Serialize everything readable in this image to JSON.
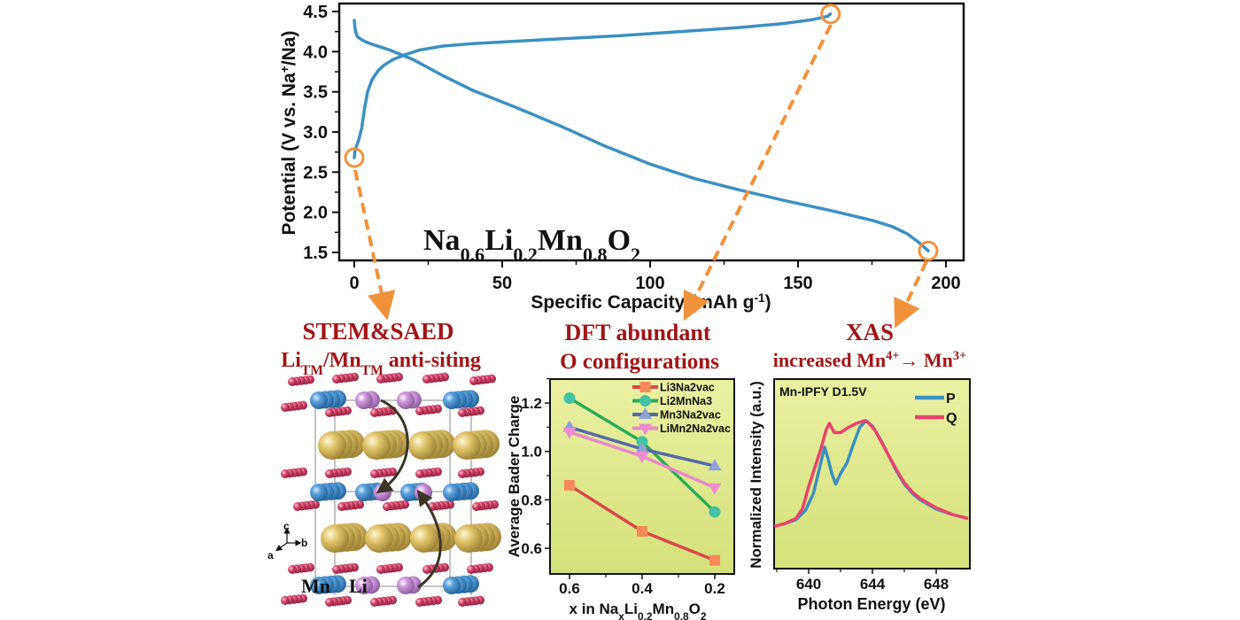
{
  "chart_data": [
    {
      "id": "voltage",
      "type": "line",
      "title": "",
      "annotation": {
        "base": [
          "Na",
          "Li",
          "Mn",
          "O"
        ],
        "subs": [
          "0.6",
          "0.2",
          "0.8",
          "2"
        ]
      },
      "xlabel": "Specific Capacity (mAh g",
      "xlabel_sup": "-1",
      "xlabel_end": ")",
      "ylabel": "Potential (V vs. Na",
      "ylabel_sup": "+",
      "ylabel_end": "/Na)",
      "xlim": [
        -7,
        205
      ],
      "ylim": [
        1.4,
        4.6
      ],
      "xticks": [
        0,
        50,
        100,
        150,
        200
      ],
      "yticks": [
        1.5,
        2.0,
        2.5,
        3.0,
        3.5,
        4.0,
        4.5
      ],
      "line_color": "#3d8fc0",
      "series": [
        {
          "name": "charge",
          "x": [
            0,
            0.3,
            0.8,
            1.5,
            2.5,
            3.5,
            4.5,
            6,
            8,
            10,
            13,
            17,
            22,
            30,
            40,
            55,
            70,
            90,
            110,
            130,
            145,
            155,
            160,
            161
          ],
          "y": [
            2.68,
            2.78,
            2.83,
            2.9,
            3.05,
            3.3,
            3.5,
            3.65,
            3.76,
            3.83,
            3.9,
            3.96,
            4.02,
            4.07,
            4.1,
            4.13,
            4.16,
            4.2,
            4.25,
            4.3,
            4.35,
            4.4,
            4.44,
            4.47
          ]
        },
        {
          "name": "discharge",
          "x": [
            0,
            0.2,
            0.5,
            1,
            2,
            4,
            7,
            12,
            20,
            30,
            40,
            55,
            70,
            85,
            100,
            115,
            130,
            145,
            160,
            175,
            182,
            187,
            191,
            194
          ],
          "y": [
            4.39,
            4.3,
            4.24,
            4.19,
            4.16,
            4.12,
            4.08,
            4.02,
            3.9,
            3.7,
            3.52,
            3.3,
            3.07,
            2.82,
            2.6,
            2.42,
            2.28,
            2.15,
            2.03,
            1.9,
            1.82,
            1.73,
            1.62,
            1.52
          ]
        }
      ],
      "markers": [
        {
          "x": 0,
          "y": 2.68,
          "label": "start"
        },
        {
          "x": 161,
          "y": 4.47,
          "label": "charged"
        },
        {
          "x": 194,
          "y": 1.52,
          "label": "discharged"
        }
      ],
      "marker_color": "#f0923c"
    },
    {
      "id": "dft",
      "type": "line",
      "title_lines": [
        "DFT  abundant",
        "O configurations"
      ],
      "xlabel": "x in Na",
      "xlabel_parts": [
        {
          "t": "x in Na"
        },
        {
          "t": "x",
          "sub": true
        },
        {
          "t": "Li"
        },
        {
          "t": "0.2",
          "sub": true
        },
        {
          "t": "Mn"
        },
        {
          "t": "0.8",
          "sub": true
        },
        {
          "t": "O"
        },
        {
          "t": "2",
          "sub": true
        }
      ],
      "ylabel": "Average Bader Charge",
      "xlim": [
        0.67,
        0.13
      ],
      "ylim": [
        0.5,
        1.3
      ],
      "xticks": [
        0.6,
        0.4,
        0.2
      ],
      "xtick_labels": [
        "0.6",
        "0.4",
        "0.2"
      ],
      "yticks": [
        0.6,
        0.8,
        1.0,
        1.2
      ],
      "ytick_labels": [
        "0.6",
        "0.8",
        "1.0",
        "1.2"
      ],
      "background": "#dfe98a",
      "categories": [
        0.6,
        0.4,
        0.2
      ],
      "legend_position": "top-right",
      "series": [
        {
          "name": "Li3Na2vac",
          "values": [
            0.86,
            0.67,
            0.55
          ],
          "color": "#d94848",
          "marker": "square",
          "marker_color": "#f58a5a"
        },
        {
          "name": "Li2MnNa3",
          "values": [
            1.22,
            1.04,
            0.75
          ],
          "color": "#2eaa55",
          "marker": "circle",
          "marker_color": "#45c2a0"
        },
        {
          "name": "Mn3Na2vac",
          "values": [
            1.1,
            1.01,
            0.94
          ],
          "color": "#5868a8",
          "marker": "triangle-up",
          "marker_color": "#8ea2d8"
        },
        {
          "name": "LiMn2Na2vac",
          "values": [
            1.08,
            0.98,
            0.85
          ],
          "color": "#e78ac8",
          "marker": "triangle-down",
          "marker_color": "#ef8ccf"
        }
      ]
    },
    {
      "id": "xas",
      "type": "line",
      "title_lines": [
        "XAS",
        "increased Mn"
      ],
      "title_sup1": "4+",
      "title_arrow": "→ Mn",
      "title_sup2": "3+",
      "annotation": "Mn-IPFY D1.5V",
      "xlabel": "Photon Energy (eV)",
      "ylabel": "Normalized Intensity (a.u.)",
      "xlim": [
        637.8,
        650
      ],
      "ylim": [
        0,
        1.1
      ],
      "xticks": [
        640,
        644,
        648
      ],
      "background": "#dfe98a",
      "legend_position": "top-right",
      "series": [
        {
          "name": "P",
          "color": "#3d8fc0",
          "x": [
            637.8,
            638.5,
            639.2,
            639.8,
            640.3,
            640.7,
            641.0,
            641.2,
            641.45,
            641.7,
            642.0,
            642.4,
            642.8,
            643.2,
            643.6,
            644.0,
            644.5,
            645.0,
            645.5,
            646.0,
            646.5,
            647.0,
            648.0,
            649.0,
            650.0
          ],
          "y": [
            0.2,
            0.22,
            0.25,
            0.32,
            0.45,
            0.65,
            0.8,
            0.72,
            0.6,
            0.52,
            0.6,
            0.68,
            0.82,
            0.95,
            1.0,
            0.96,
            0.86,
            0.74,
            0.62,
            0.52,
            0.45,
            0.4,
            0.33,
            0.29,
            0.26
          ]
        },
        {
          "name": "Q",
          "color": "#e8456a",
          "x": [
            637.8,
            638.5,
            639.2,
            639.6,
            640.0,
            640.4,
            640.8,
            641.1,
            641.3,
            641.6,
            642.0,
            642.5,
            643.0,
            643.5,
            643.8,
            644.2,
            644.6,
            645.0,
            645.5,
            646.0,
            646.5,
            647.0,
            648.0,
            649.0,
            650.0
          ],
          "y": [
            0.2,
            0.22,
            0.26,
            0.33,
            0.5,
            0.65,
            0.8,
            0.93,
            0.98,
            0.91,
            0.91,
            0.95,
            0.98,
            1.0,
            0.98,
            0.92,
            0.83,
            0.74,
            0.63,
            0.53,
            0.46,
            0.41,
            0.34,
            0.29,
            0.26
          ]
        }
      ]
    }
  ],
  "structure_panel": {
    "title_line1": "STEM&SAED",
    "title_line2_parts": [
      {
        "t": "Li"
      },
      {
        "t": "TM",
        "sub": true
      },
      {
        "t": "/Mn"
      },
      {
        "t": "TM",
        "sub": true
      },
      {
        "t": " anti-siting"
      }
    ],
    "axes_labels": {
      "c": "c",
      "a": "a",
      "b": "b"
    },
    "atom_labels": {
      "mn": "Mn",
      "li": "Li"
    },
    "colors": {
      "mn": "#4a90cf",
      "li": "#c98fd6",
      "na": "#d9bf62",
      "o": "#d24a6f"
    }
  }
}
